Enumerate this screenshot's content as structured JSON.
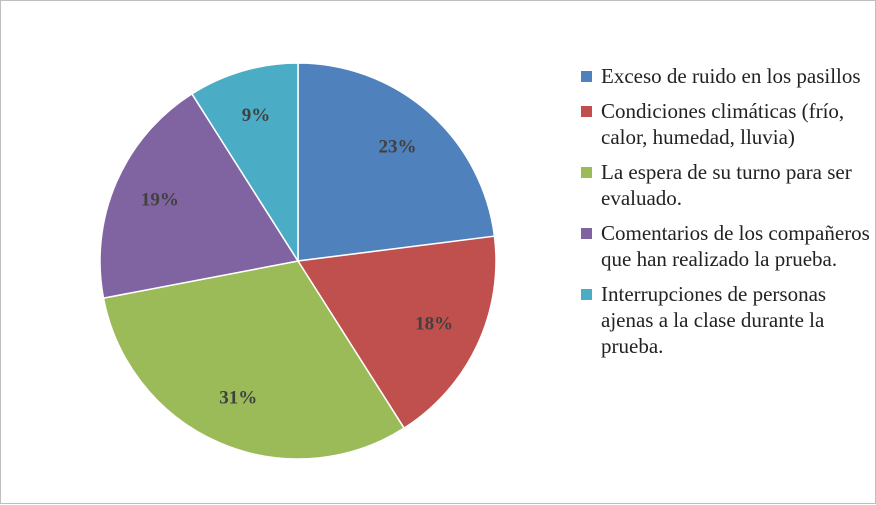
{
  "chart_data": {
    "type": "pie",
    "categories": [
      "Exceso de ruido en los pasillos",
      "Condiciones climáticas (frío, calor, humedad, lluvia)",
      "La espera de su turno para ser evaluado.",
      "Comentarios de los compañeros que han realizado la prueba.",
      "Interrupciones de personas ajenas a la clase durante la prueba."
    ],
    "values": [
      23,
      18,
      31,
      19,
      9
    ],
    "value_labels": [
      "23%",
      "18%",
      "31%",
      "19%",
      "9%"
    ],
    "colors": [
      "#4f81bd",
      "#c0504d",
      "#9bbb59",
      "#8064a2",
      "#4bacc6"
    ]
  }
}
